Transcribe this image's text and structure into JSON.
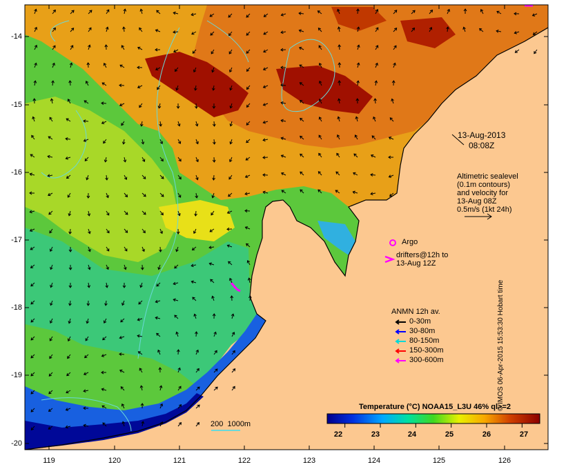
{
  "map": {
    "timestamp": {
      "date": "13-Aug-2013",
      "time": "08:08Z"
    },
    "altimetry_note": [
      "Altimetric sealevel",
      "(0.1m contours)",
      "and velocity for",
      "13-Aug 08Z",
      "0.5m/s (1kt 24h)"
    ],
    "argo_label": "Argo",
    "drifters_label": [
      "drifters@12h to",
      "13-Aug 12Z"
    ],
    "anmn": {
      "title": "ANMN 12h av.",
      "items": [
        {
          "label": "0-30m",
          "color": "#000000"
        },
        {
          "label": "30-80m",
          "color": "#0000ff"
        },
        {
          "label": "80-150m",
          "color": "#00d8d8"
        },
        {
          "label": "150-300m",
          "color": "#ff0000"
        },
        {
          "label": "300-600m",
          "color": "#ff00ff"
        }
      ]
    },
    "depth_contour_label": "200  1000m",
    "colorbar": {
      "title": "Temperature (°C) NOAA15_L3U 46% ql>=2",
      "ticks": [
        "22",
        "23",
        "24",
        "25",
        "26",
        "27"
      ],
      "range": [
        21.5,
        27.5
      ]
    },
    "lat_ticks": [
      "-14",
      "-15",
      "-16",
      "-17",
      "-18",
      "-19",
      "-20"
    ],
    "lon_ticks": [
      "119",
      "120",
      "121",
      "122",
      "123",
      "124",
      "125",
      "126"
    ],
    "credit": "© IMOS 06-Apr-2015 15:53:30 Hobart time",
    "colors": {
      "land": "#fcc890",
      "coast": "#000000",
      "contour": "#6ad8d8"
    }
  }
}
